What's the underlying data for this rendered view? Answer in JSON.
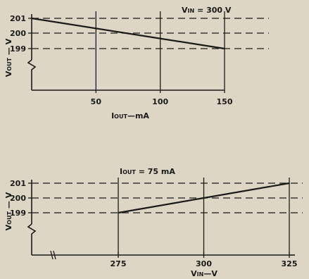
{
  "chart_data": [
    {
      "type": "line",
      "title": "",
      "annotation": "VIN = 300 V",
      "xlabel": "IOUT—mA",
      "ylabel": "VOUT — V",
      "xlim": [
        0,
        150
      ],
      "ylim": [
        199,
        201
      ],
      "x_ticks": [
        50,
        100,
        150
      ],
      "y_ticks": [
        201,
        200,
        199
      ],
      "series": [
        {
          "x": [
            0,
            150
          ],
          "values": [
            201,
            199
          ]
        }
      ]
    },
    {
      "type": "line",
      "title": "",
      "annotation": "IOUT = 75 mA",
      "xlabel": "VIN—V",
      "ylabel": "VOUT — V",
      "xlim": [
        275,
        325
      ],
      "ylim": [
        199,
        201
      ],
      "x_ticks": [
        275,
        300,
        325
      ],
      "y_ticks": [
        201,
        200,
        199
      ],
      "series": [
        {
          "x": [
            275,
            325
          ],
          "values": [
            199,
            201
          ]
        }
      ]
    }
  ],
  "colors": {
    "background": "#ddd6c6",
    "ink": "#1a1a1a"
  }
}
